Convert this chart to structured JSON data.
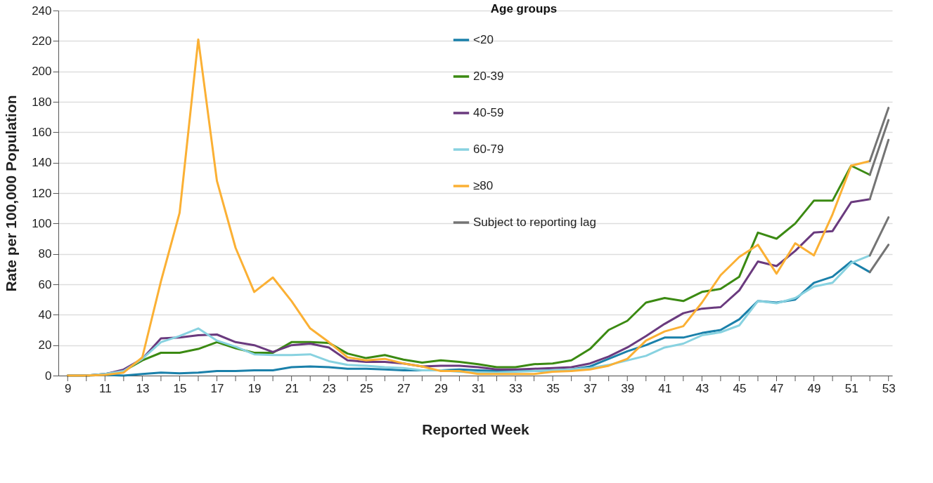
{
  "chart_data": {
    "type": "line",
    "xlabel": "Reported Week",
    "ylabel": "Rate per 100,000 Population",
    "legend_title": "Age groups",
    "legend": "top",
    "grid": "y",
    "marker": "none",
    "line_style": "solid",
    "xlim": [
      8.5,
      53.2
    ],
    "xticks": [
      9,
      {
        "value": 10,
        "label": null
      },
      11,
      {
        "value": 12,
        "label": null
      },
      13,
      {
        "value": 14,
        "label": null
      },
      15,
      {
        "value": 16,
        "label": null
      },
      17,
      {
        "value": 18,
        "label": null
      },
      19,
      {
        "value": 20,
        "label": null
      },
      21,
      {
        "value": 22,
        "label": null
      },
      23,
      {
        "value": 24,
        "label": null
      },
      25,
      {
        "value": 26,
        "label": null
      },
      27,
      {
        "value": 28,
        "label": null
      },
      29,
      {
        "value": 30,
        "label": null
      },
      31,
      {
        "value": 32,
        "label": null
      },
      33,
      {
        "value": 34,
        "label": null
      },
      35,
      {
        "value": 36,
        "label": null
      },
      37,
      {
        "value": 38,
        "label": null
      },
      39,
      {
        "value": 40,
        "label": null
      },
      41,
      {
        "value": 42,
        "label": null
      },
      43,
      {
        "value": 44,
        "label": null
      },
      45,
      {
        "value": 46,
        "label": null
      },
      47,
      {
        "value": 48,
        "label": null
      },
      49,
      {
        "value": 50,
        "label": null
      },
      51,
      {
        "value": 52,
        "label": null
      },
      53
    ],
    "ylim": [
      0,
      240
    ],
    "yticks": [
      0,
      20,
      40,
      60,
      80,
      100,
      120,
      140,
      160,
      180,
      200,
      220,
      240
    ],
    "x": [
      9,
      10,
      11,
      12,
      13,
      14,
      15,
      16,
      17,
      18,
      19,
      20,
      21,
      22,
      23,
      24,
      25,
      26,
      27,
      28,
      29,
      30,
      31,
      32,
      33,
      34,
      35,
      36,
      37,
      38,
      39,
      40,
      41,
      42,
      43,
      44,
      45,
      46,
      47,
      48,
      49,
      50,
      51,
      52,
      53
    ],
    "series": [
      {
        "name": "<20",
        "color": "#1a80aa",
        "values": [
          0,
          0,
          0.5,
          0,
          1,
          2,
          1.5,
          2,
          3,
          3,
          3.5,
          3.5,
          5.5,
          6,
          5.5,
          4.5,
          4.5,
          4,
          3.5,
          3.5,
          3.5,
          4,
          3.5,
          3,
          3,
          3,
          3.5,
          4,
          6,
          11,
          16,
          20,
          25,
          25,
          28,
          30,
          37,
          49,
          48,
          50,
          61,
          65,
          75,
          68,
          null
        ]
      },
      {
        "name": "20-39",
        "color": "#3b8a12",
        "values": [
          0,
          0,
          1,
          3,
          10,
          15,
          15,
          17.5,
          22,
          18,
          15,
          15,
          22,
          22,
          21.5,
          14.5,
          11.5,
          13.5,
          10.5,
          8.5,
          10,
          9,
          7.5,
          5.5,
          5.5,
          7.5,
          8,
          10,
          17.5,
          30,
          36,
          48,
          51,
          49,
          55,
          57,
          65,
          94,
          90,
          100,
          115,
          115,
          138,
          132,
          null
        ]
      },
      {
        "name": "40-59",
        "color": "#6a3a7e",
        "values": [
          0,
          0,
          1,
          4,
          11,
          24.5,
          25,
          26.5,
          27,
          22,
          20,
          15.5,
          20,
          21,
          18.5,
          10,
          9,
          9,
          8,
          6,
          6.5,
          6.5,
          5.5,
          4,
          4,
          4.5,
          5,
          5.5,
          8,
          12.5,
          18.5,
          26,
          34,
          41,
          44,
          45,
          56,
          75,
          72,
          82,
          94,
          95,
          114,
          116,
          null
        ]
      },
      {
        "name": "60-79",
        "color": "#88d2e0",
        "values": [
          0,
          0,
          1,
          3,
          11,
          22,
          26,
          31,
          23,
          19,
          14,
          13.5,
          13.5,
          14,
          9.5,
          7,
          6.5,
          5.5,
          5,
          3.5,
          3.5,
          2.5,
          2,
          2,
          2.5,
          3,
          3.5,
          4,
          5,
          7,
          10,
          13,
          18.5,
          21,
          26.5,
          28.5,
          33,
          49,
          47.5,
          51,
          58.5,
          61,
          74,
          79,
          null
        ]
      },
      {
        "name": "≥80",
        "color": "#fbb034",
        "values": [
          0,
          0,
          0.5,
          2,
          12,
          62,
          107,
          221,
          128,
          84,
          55,
          64.5,
          49,
          31,
          22,
          12,
          10,
          11,
          8,
          6,
          3,
          3,
          1,
          1,
          1,
          1,
          2.5,
          3,
          4,
          6.5,
          11,
          23,
          29,
          32.5,
          48,
          66,
          78,
          86,
          67,
          87,
          79,
          106,
          138,
          141,
          null
        ]
      },
      {
        "name": "Subject to reporting lag",
        "color": "#747474",
        "values": [
          null,
          null,
          null,
          null,
          null,
          null,
          null,
          null,
          null,
          null,
          null,
          null,
          null,
          null,
          null,
          null,
          null,
          null,
          null,
          null,
          null,
          null,
          null,
          null,
          null,
          null,
          null,
          null,
          null,
          null,
          null,
          null,
          null,
          null,
          null,
          null,
          null,
          null,
          null,
          null,
          null,
          null,
          null,
          68,
          86
        ]
      },
      {
        "color": "#747474",
        "values": [
          null,
          null,
          null,
          null,
          null,
          null,
          null,
          null,
          null,
          null,
          null,
          null,
          null,
          null,
          null,
          null,
          null,
          null,
          null,
          null,
          null,
          null,
          null,
          null,
          null,
          null,
          null,
          null,
          null,
          null,
          null,
          null,
          null,
          null,
          null,
          null,
          null,
          null,
          null,
          null,
          null,
          null,
          null,
          132,
          168
        ]
      },
      {
        "color": "#747474",
        "values": [
          null,
          null,
          null,
          null,
          null,
          null,
          null,
          null,
          null,
          null,
          null,
          null,
          null,
          null,
          null,
          null,
          null,
          null,
          null,
          null,
          null,
          null,
          null,
          null,
          null,
          null,
          null,
          null,
          null,
          null,
          null,
          null,
          null,
          null,
          null,
          null,
          null,
          null,
          null,
          null,
          null,
          null,
          null,
          116,
          155
        ]
      },
      {
        "color": "#747474",
        "values": [
          null,
          null,
          null,
          null,
          null,
          null,
          null,
          null,
          null,
          null,
          null,
          null,
          null,
          null,
          null,
          null,
          null,
          null,
          null,
          null,
          null,
          null,
          null,
          null,
          null,
          null,
          null,
          null,
          null,
          null,
          null,
          null,
          null,
          null,
          null,
          null,
          null,
          null,
          null,
          null,
          null,
          null,
          null,
          79,
          104
        ]
      },
      {
        "color": "#747474",
        "values": [
          null,
          null,
          null,
          null,
          null,
          null,
          null,
          null,
          null,
          null,
          null,
          null,
          null,
          null,
          null,
          null,
          null,
          null,
          null,
          null,
          null,
          null,
          null,
          null,
          null,
          null,
          null,
          null,
          null,
          null,
          null,
          null,
          null,
          null,
          null,
          null,
          null,
          null,
          null,
          null,
          null,
          null,
          null,
          141,
          176
        ]
      }
    ]
  }
}
